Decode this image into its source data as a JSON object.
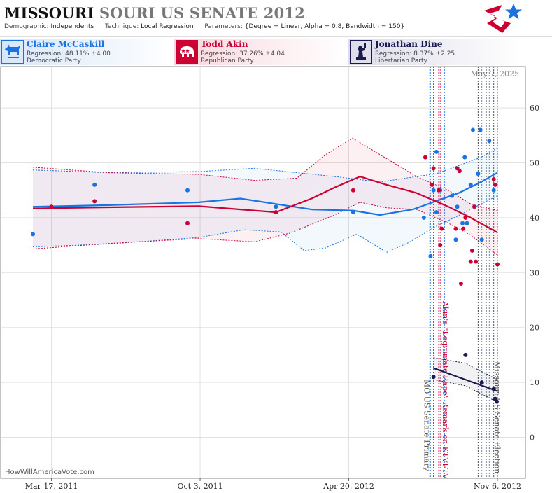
{
  "header": {
    "title_part1": "MISSOURI",
    "title_part2": "SOURI US SENATE 2012",
    "demographic_label": "Demographic:",
    "demographic_value": "Independents",
    "technique_label": "Technique:",
    "technique_value": "Local Regression",
    "parameters_label": "Parameters:",
    "parameters_value": "{Degree = Linear, Alpha = 0.8, Bandwidth = 150}"
  },
  "candidates": [
    {
      "name": "Claire McCaskill",
      "regression": "Regression: 48.11% ±4.00",
      "party": "Democratic Party",
      "color": "#1a73e0",
      "icon": "donkey-icon"
    },
    {
      "name": "Todd Akin",
      "regression": "Regression: 37.26% ±4.04",
      "party": "Republican Party",
      "color": "#cc0033",
      "icon": "elephant-icon"
    },
    {
      "name": "Jonathan Dine",
      "regression": "Regression: 8.37% ±2.25",
      "party": "Libertarian Party",
      "color": "#1a1a4e",
      "icon": "liberty-icon"
    }
  ],
  "footer": {
    "watermark": "HowWillAmericaVote.com"
  },
  "chart_data": {
    "type": "scatter",
    "date_label": "May 7, 2025",
    "x_tick_labels": [
      "Mar 17, 2011",
      "Oct 3, 2011",
      "Apr 20, 2012",
      "Nov 6, 2012"
    ],
    "x_tick_dates": [
      "2011-03-17",
      "2011-10-03",
      "2012-04-20",
      "2012-11-06"
    ],
    "x_range": [
      "2011-02-20",
      "2012-11-06"
    ],
    "ylim": [
      -5,
      70
    ],
    "y_ticks": [
      0,
      10,
      20,
      30,
      40,
      50,
      60
    ],
    "grid": true,
    "events": [
      {
        "label": "MO US Senate Primary",
        "date": "2012-08-07",
        "color": "#555555"
      },
      {
        "label": "Akin's \"Legitimate Rape\" Remark on KTVI-TV",
        "date": "2012-08-19",
        "color": "#cc0033"
      },
      {
        "label": "Missouri US Senate Election",
        "date": "2012-11-06",
        "color": "#555555"
      }
    ],
    "poll_lines": [
      {
        "date": "2012-08-08",
        "color": "#1a73e0"
      },
      {
        "date": "2012-08-12",
        "color": "#222222"
      },
      {
        "date": "2012-08-21",
        "color": "#cc0033"
      },
      {
        "date": "2012-08-27",
        "color": "#1a73e0"
      },
      {
        "date": "2012-10-11",
        "color": "#222222"
      },
      {
        "date": "2012-10-16",
        "color": "#1a73e0"
      },
      {
        "date": "2012-10-22",
        "color": "#222222"
      },
      {
        "date": "2012-10-26",
        "color": "#1a73e0"
      },
      {
        "date": "2012-11-01",
        "color": "#222222"
      }
    ],
    "series": [
      {
        "name": "Claire McCaskill",
        "color": "#1a73e0",
        "points": [
          [
            "2011-02-20",
            37
          ],
          [
            "2011-03-17",
            42
          ],
          [
            "2011-05-14",
            46
          ],
          [
            "2011-09-16",
            45
          ],
          [
            "2012-01-13",
            42
          ],
          [
            "2012-04-26",
            41
          ],
          [
            "2012-07-30",
            40
          ],
          [
            "2012-08-08",
            33
          ],
          [
            "2012-08-12",
            45
          ],
          [
            "2012-08-16",
            52
          ],
          [
            "2012-08-21",
            45
          ],
          [
            "2012-08-16",
            41
          ],
          [
            "2012-09-06",
            44
          ],
          [
            "2012-09-11",
            36
          ],
          [
            "2012-09-13",
            42
          ],
          [
            "2012-09-20",
            39
          ],
          [
            "2012-09-23",
            51
          ],
          [
            "2012-09-26",
            39
          ],
          [
            "2012-10-01",
            46
          ],
          [
            "2012-10-04",
            56
          ],
          [
            "2012-10-11",
            48
          ],
          [
            "2012-10-14",
            56
          ],
          [
            "2012-10-16",
            36
          ],
          [
            "2012-10-26",
            54
          ],
          [
            "2012-11-01",
            45
          ]
        ],
        "trend": [
          [
            "2011-02-20",
            42
          ],
          [
            "2011-06-01",
            42.3
          ],
          [
            "2011-10-01",
            42.8
          ],
          [
            "2011-11-26",
            43.5
          ],
          [
            "2012-01-13",
            42.5
          ],
          [
            "2012-03-01",
            41.5
          ],
          [
            "2012-04-26",
            41.3
          ],
          [
            "2012-06-01",
            40.5
          ],
          [
            "2012-07-15",
            41.5
          ],
          [
            "2012-08-15",
            43
          ],
          [
            "2012-09-15",
            44.5
          ],
          [
            "2012-10-15",
            46.5
          ],
          [
            "2012-11-06",
            48.2
          ]
        ],
        "upper": [
          [
            "2011-02-20",
            48.7
          ],
          [
            "2011-06-01",
            48.2
          ],
          [
            "2011-10-01",
            48.4
          ],
          [
            "2011-12-15",
            49
          ],
          [
            "2012-04-01",
            47.5
          ],
          [
            "2012-06-01",
            46.5
          ],
          [
            "2012-07-15",
            47.4
          ],
          [
            "2012-08-15",
            48
          ],
          [
            "2012-09-15",
            49.5
          ],
          [
            "2012-10-15",
            51
          ],
          [
            "2012-11-06",
            52.7
          ]
        ],
        "lower": [
          [
            "2011-02-20",
            34.7
          ],
          [
            "2011-06-01",
            35.2
          ],
          [
            "2011-10-01",
            36.4
          ],
          [
            "2011-12-01",
            37.8
          ],
          [
            "2012-01-20",
            37.4
          ],
          [
            "2012-02-20",
            34
          ],
          [
            "2012-03-20",
            34.5
          ],
          [
            "2012-05-01",
            37
          ],
          [
            "2012-06-10",
            33.7
          ],
          [
            "2012-07-10",
            35.5
          ],
          [
            "2012-08-15",
            38.4
          ],
          [
            "2012-09-15",
            40.4
          ],
          [
            "2012-10-15",
            42.5
          ],
          [
            "2012-11-06",
            44
          ]
        ]
      },
      {
        "name": "Todd Akin",
        "color": "#cc0033",
        "points": [
          [
            "2011-03-17",
            42
          ],
          [
            "2011-05-14",
            43
          ],
          [
            "2011-09-16",
            39
          ],
          [
            "2012-01-13",
            41
          ],
          [
            "2012-04-26",
            45
          ],
          [
            "2012-08-01",
            51
          ],
          [
            "2012-08-10",
            46
          ],
          [
            "2012-08-12",
            49
          ],
          [
            "2012-08-19",
            45
          ],
          [
            "2012-08-21",
            35
          ],
          [
            "2012-08-23",
            38
          ],
          [
            "2012-09-11",
            38
          ],
          [
            "2012-09-13",
            49
          ],
          [
            "2012-09-16",
            48.5
          ],
          [
            "2012-09-18",
            28
          ],
          [
            "2012-09-21",
            38
          ],
          [
            "2012-09-24",
            40
          ],
          [
            "2012-10-01",
            32
          ],
          [
            "2012-10-03",
            34
          ],
          [
            "2012-10-06",
            42
          ],
          [
            "2012-10-08",
            32
          ],
          [
            "2012-11-01",
            47
          ],
          [
            "2012-11-03",
            46
          ],
          [
            "2012-11-06",
            31.5
          ]
        ],
        "trend": [
          [
            "2011-02-20",
            41.7
          ],
          [
            "2011-06-01",
            41.9
          ],
          [
            "2011-10-01",
            42.1
          ],
          [
            "2012-01-13",
            41
          ],
          [
            "2012-03-01",
            43.5
          ],
          [
            "2012-04-01",
            45.5
          ],
          [
            "2012-05-05",
            47.5
          ],
          [
            "2012-06-10",
            46
          ],
          [
            "2012-07-20",
            44.5
          ],
          [
            "2012-09-01",
            42
          ],
          [
            "2012-10-01",
            40
          ],
          [
            "2012-11-06",
            37.3
          ]
        ],
        "upper": [
          [
            "2011-02-20",
            49.2
          ],
          [
            "2011-06-01",
            48.2
          ],
          [
            "2011-10-01",
            47.9
          ],
          [
            "2011-12-15",
            46.8
          ],
          [
            "2012-02-10",
            47.2
          ],
          [
            "2012-03-20",
            51.5
          ],
          [
            "2012-04-25",
            54.5
          ],
          [
            "2012-06-01",
            51.5
          ],
          [
            "2012-07-20",
            47.5
          ],
          [
            "2012-09-01",
            45
          ],
          [
            "2012-10-01",
            42.5
          ],
          [
            "2012-11-06",
            41.3
          ]
        ],
        "lower": [
          [
            "2011-02-20",
            34.3
          ],
          [
            "2011-06-01",
            35.3
          ],
          [
            "2011-10-01",
            36.2
          ],
          [
            "2011-12-15",
            35.6
          ],
          [
            "2012-02-01",
            37.2
          ],
          [
            "2012-04-01",
            40.5
          ],
          [
            "2012-05-05",
            42.8
          ],
          [
            "2012-06-10",
            41.8
          ],
          [
            "2012-07-20",
            41.5
          ],
          [
            "2012-09-01",
            39
          ],
          [
            "2012-10-01",
            36.8
          ],
          [
            "2012-11-06",
            33.2
          ]
        ]
      },
      {
        "name": "Jonathan Dine",
        "color": "#1a1a4e",
        "points": [
          [
            "2012-08-12",
            11
          ],
          [
            "2012-09-24",
            15
          ],
          [
            "2012-10-16",
            10
          ],
          [
            "2012-11-01",
            8.8
          ],
          [
            "2012-11-03",
            7
          ],
          [
            "2012-11-05",
            6.5
          ]
        ],
        "trend": [
          [
            "2012-08-12",
            12.6
          ],
          [
            "2012-11-06",
            8.4
          ]
        ],
        "upper": [
          [
            "2012-08-12",
            14.5
          ],
          [
            "2012-09-24",
            13.5
          ],
          [
            "2012-11-06",
            10.5
          ]
        ],
        "lower": [
          [
            "2012-08-12",
            10.5
          ],
          [
            "2012-09-24",
            9.4
          ],
          [
            "2012-11-06",
            6.4
          ]
        ]
      }
    ]
  }
}
